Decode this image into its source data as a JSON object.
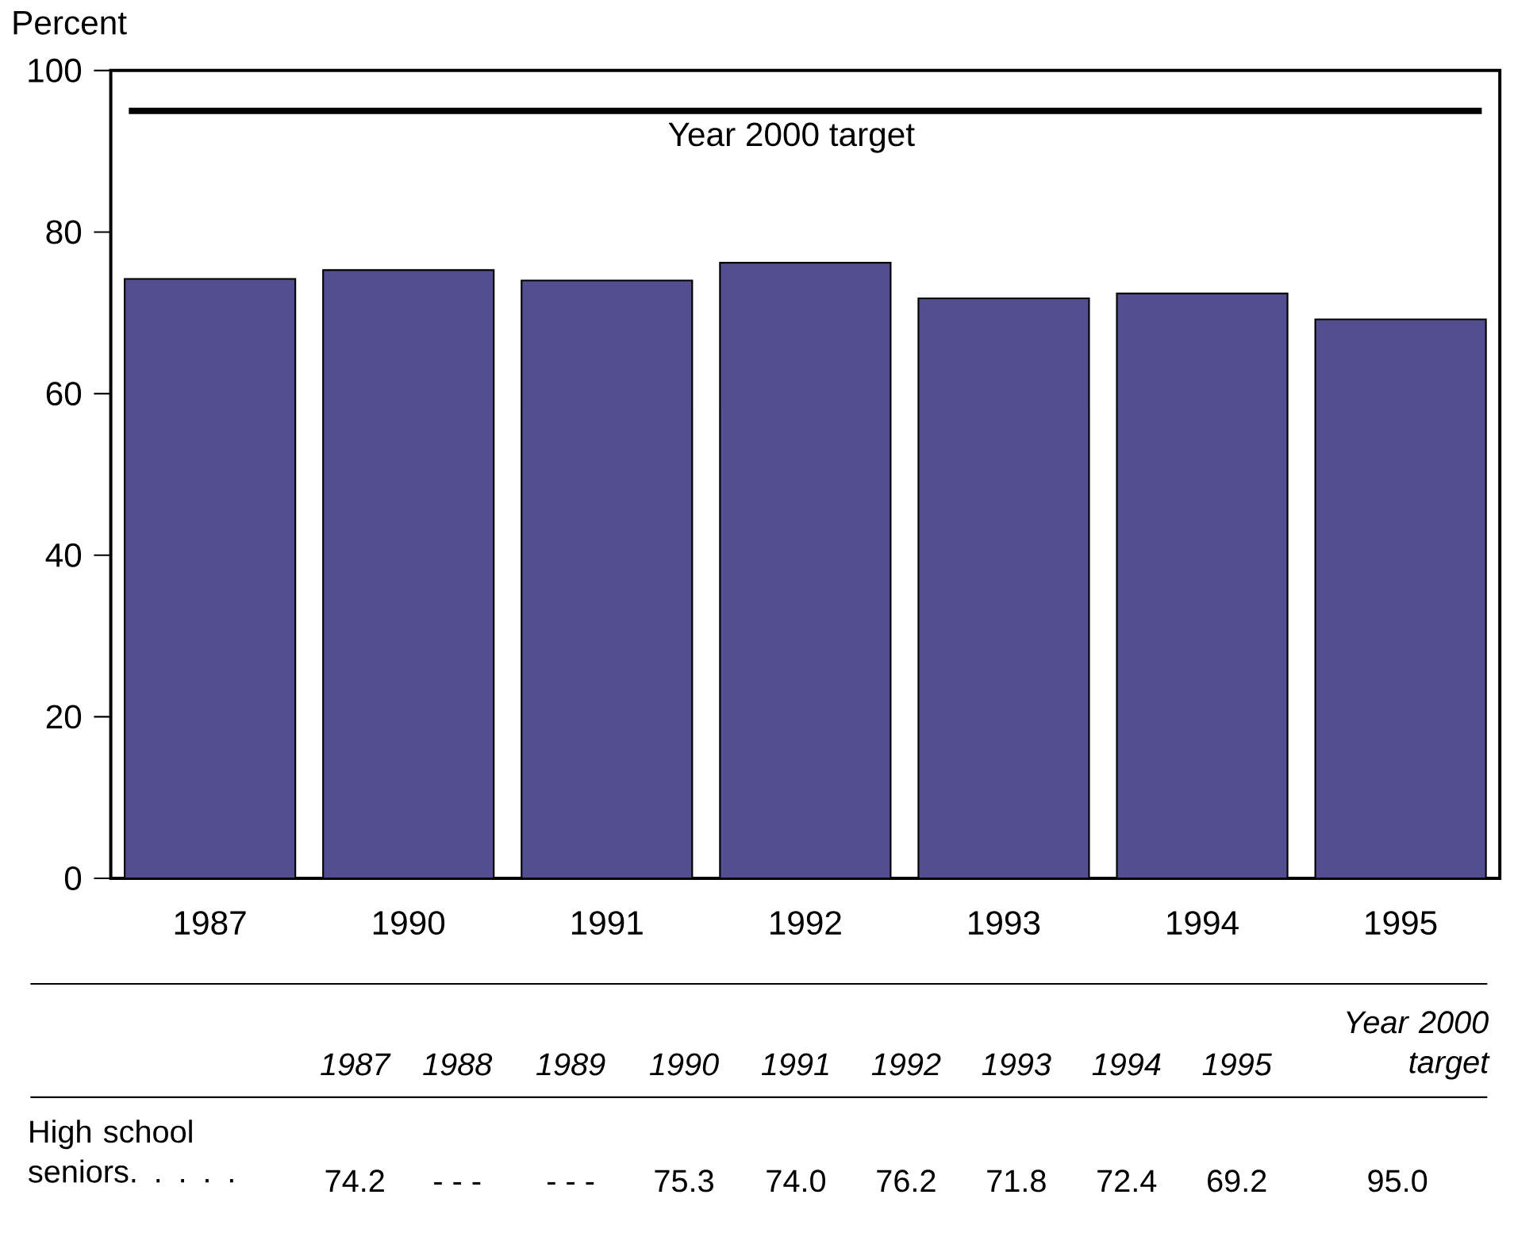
{
  "chart_data": {
    "type": "bar",
    "ylabel": "Percent",
    "categories": [
      "1987",
      "1990",
      "1991",
      "1992",
      "1993",
      "1994",
      "1995"
    ],
    "values": [
      74.2,
      75.3,
      74.0,
      76.2,
      71.8,
      72.4,
      69.2
    ],
    "color": "#524e8f",
    "ylim": [
      0,
      100
    ],
    "yticks": [
      0,
      20,
      40,
      60,
      80,
      100
    ],
    "ref_lines": [
      {
        "axis": "y",
        "value": 95,
        "label": "Year 2000 target",
        "color": "#000000"
      }
    ],
    "annotations": [
      "1987",
      "1988",
      "1989",
      "1990",
      "1991",
      "1992",
      "1993",
      "1994",
      "1995",
      "Year 2000 target",
      "High school seniors. . . . .",
      "74.2",
      "- - -",
      "- - -",
      "75.3",
      "74.0",
      "76.2",
      "71.8",
      "72.4",
      "69.2",
      "95.0"
    ]
  }
}
